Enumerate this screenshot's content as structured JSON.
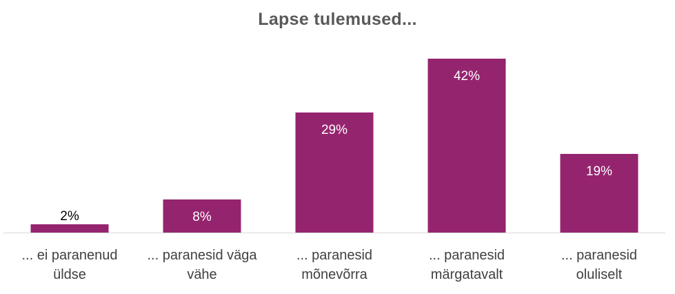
{
  "chart_data": {
    "type": "bar",
    "title": "Lapse tulemused...",
    "categories": [
      "... ei paranenud\nüldse",
      "... paranesid väga\nvähe",
      "...  paranesid\nmõnevõrra",
      "... paranesid\nmärgatavalt",
      "... paranesid\noluliselt"
    ],
    "values": [
      2,
      8,
      29,
      42,
      19
    ],
    "data_labels": [
      "2%",
      "8%",
      "29%",
      "42%",
      "19%"
    ],
    "ylim": [
      0,
      42
    ],
    "grid": false,
    "legend": "none",
    "bar_color": "#95246f",
    "inside_label_color": "#ffffff",
    "outside_label_color": "#000000",
    "axis_color": "#d9d9d9"
  }
}
